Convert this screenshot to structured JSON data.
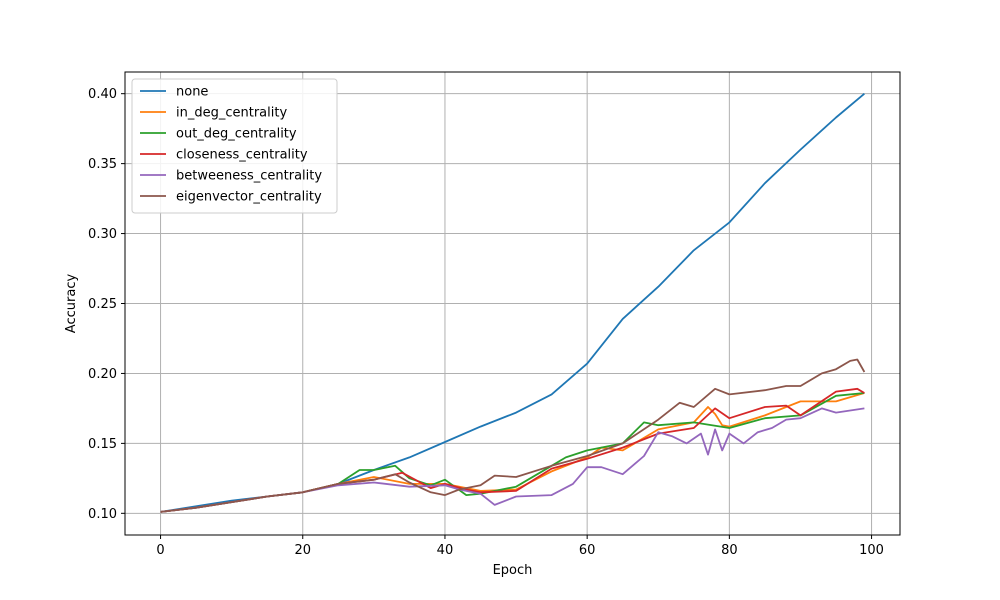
{
  "chart_data": {
    "type": "line",
    "title": "",
    "xlabel": "Epoch",
    "ylabel": "Accuracy",
    "xlim": [
      -5,
      104
    ],
    "ylim": [
      0.0845,
      0.4155
    ],
    "xticks": [
      0,
      20,
      40,
      60,
      80,
      100
    ],
    "yticks": [
      0.1,
      0.15,
      0.2,
      0.25,
      0.3,
      0.35,
      0.4
    ],
    "xtick_labels": [
      "0",
      "20",
      "40",
      "60",
      "80",
      "100"
    ],
    "ytick_labels": [
      "0.10",
      "0.15",
      "0.20",
      "0.25",
      "0.30",
      "0.35",
      "0.40"
    ],
    "grid": true,
    "legend_position": "upper-left",
    "series": [
      {
        "name": "none",
        "color": "#1f77b4",
        "x": [
          0,
          5,
          10,
          15,
          20,
          25,
          30,
          35,
          40,
          45,
          50,
          55,
          60,
          65,
          70,
          75,
          80,
          85,
          90,
          95,
          99
        ],
        "values": [
          0.101,
          0.105,
          0.109,
          0.112,
          0.115,
          0.121,
          0.131,
          0.14,
          0.151,
          0.162,
          0.172,
          0.185,
          0.207,
          0.239,
          0.262,
          0.288,
          0.308,
          0.336,
          0.36,
          0.383,
          0.4
        ]
      },
      {
        "name": "in_deg_centrality",
        "color": "#ff7f0e",
        "x": [
          0,
          5,
          10,
          15,
          20,
          25,
          30,
          35,
          40,
          45,
          50,
          55,
          60,
          62,
          65,
          70,
          75,
          77,
          78,
          79,
          80,
          85,
          90,
          95,
          99
        ],
        "values": [
          0.101,
          0.104,
          0.108,
          0.112,
          0.115,
          0.121,
          0.126,
          0.121,
          0.121,
          0.116,
          0.117,
          0.13,
          0.14,
          0.147,
          0.145,
          0.16,
          0.165,
          0.176,
          0.171,
          0.163,
          0.162,
          0.17,
          0.18,
          0.18,
          0.186
        ]
      },
      {
        "name": "out_deg_centrality",
        "color": "#2ca02c",
        "x": [
          0,
          5,
          10,
          15,
          20,
          25,
          28,
          30,
          33,
          35,
          38,
          40,
          43,
          45,
          50,
          55,
          57,
          60,
          65,
          68,
          70,
          75,
          80,
          85,
          90,
          95,
          99
        ],
        "values": [
          0.101,
          0.104,
          0.108,
          0.112,
          0.115,
          0.121,
          0.131,
          0.131,
          0.134,
          0.125,
          0.12,
          0.124,
          0.113,
          0.114,
          0.119,
          0.134,
          0.14,
          0.145,
          0.15,
          0.165,
          0.163,
          0.165,
          0.161,
          0.168,
          0.17,
          0.184,
          0.186
        ]
      },
      {
        "name": "closeness_centrality",
        "color": "#d62728",
        "x": [
          0,
          5,
          10,
          15,
          20,
          25,
          30,
          34,
          38,
          40,
          43,
          45,
          50,
          55,
          60,
          65,
          70,
          75,
          78,
          80,
          85,
          88,
          90,
          95,
          98,
          99
        ],
        "values": [
          0.101,
          0.104,
          0.108,
          0.112,
          0.115,
          0.121,
          0.124,
          0.129,
          0.118,
          0.121,
          0.117,
          0.115,
          0.116,
          0.132,
          0.139,
          0.147,
          0.157,
          0.161,
          0.175,
          0.168,
          0.176,
          0.177,
          0.17,
          0.187,
          0.189,
          0.186
        ]
      },
      {
        "name": "betweeness_centrality",
        "color": "#9467bd",
        "x": [
          0,
          5,
          10,
          15,
          20,
          25,
          30,
          35,
          40,
          42,
          45,
          47,
          50,
          55,
          58,
          60,
          62,
          65,
          68,
          70,
          72,
          74,
          76,
          77,
          78,
          79,
          80,
          82,
          84,
          86,
          88,
          90,
          93,
          95,
          99
        ],
        "values": [
          0.101,
          0.104,
          0.108,
          0.112,
          0.115,
          0.12,
          0.122,
          0.119,
          0.12,
          0.117,
          0.114,
          0.106,
          0.112,
          0.113,
          0.121,
          0.133,
          0.133,
          0.128,
          0.141,
          0.158,
          0.155,
          0.15,
          0.157,
          0.142,
          0.16,
          0.145,
          0.157,
          0.15,
          0.158,
          0.161,
          0.167,
          0.168,
          0.175,
          0.172,
          0.175
        ]
      },
      {
        "name": "eigenvector_centrality",
        "color": "#8c564b",
        "x": [
          0,
          5,
          10,
          15,
          20,
          25,
          30,
          33,
          35,
          38,
          40,
          42,
          45,
          47,
          50,
          55,
          60,
          65,
          70,
          73,
          75,
          78,
          80,
          85,
          88,
          90,
          93,
          95,
          97,
          98,
          99
        ],
        "values": [
          0.101,
          0.104,
          0.108,
          0.112,
          0.115,
          0.121,
          0.124,
          0.128,
          0.122,
          0.115,
          0.113,
          0.117,
          0.12,
          0.127,
          0.126,
          0.134,
          0.141,
          0.15,
          0.167,
          0.179,
          0.176,
          0.189,
          0.185,
          0.188,
          0.191,
          0.191,
          0.2,
          0.203,
          0.209,
          0.21,
          0.201
        ]
      }
    ]
  }
}
